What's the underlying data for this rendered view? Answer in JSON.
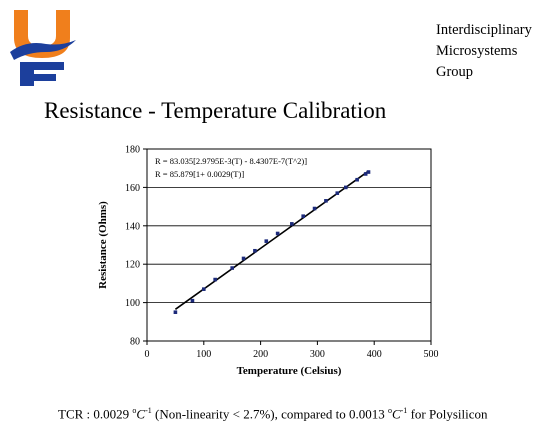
{
  "header": {
    "org_lines": [
      "Interdisciplinary",
      "Microsystems",
      "Group"
    ],
    "slide_title": "Resistance - Temperature Calibration"
  },
  "logo": {
    "icon": "uf-gator-logo-icon",
    "colors": [
      "#f07f1c",
      "#1c3f9c"
    ]
  },
  "chart_data": {
    "type": "scatter",
    "title": "",
    "xlabel": "Temperature (Celsius)",
    "ylabel": "Resistance (Ohms)",
    "xlim": [
      0,
      500
    ],
    "ylim": [
      80,
      180
    ],
    "x_ticks": [
      0,
      100,
      200,
      300,
      400,
      500
    ],
    "y_ticks": [
      80,
      100,
      120,
      140,
      160,
      180
    ],
    "grid": "horizontal",
    "series": [
      {
        "marker_color": "#1c2a7a",
        "points": [
          [
            50,
            95
          ],
          [
            80,
            101
          ],
          [
            100,
            107
          ],
          [
            120,
            112
          ],
          [
            150,
            118
          ],
          [
            170,
            123
          ],
          [
            190,
            127
          ],
          [
            210,
            132
          ],
          [
            230,
            136
          ],
          [
            255,
            141
          ],
          [
            275,
            145
          ],
          [
            295,
            149
          ],
          [
            315,
            153
          ],
          [
            335,
            157
          ],
          [
            350,
            160
          ],
          [
            370,
            164
          ],
          [
            385,
            167
          ],
          [
            390,
            168
          ]
        ]
      }
    ],
    "fits": [
      {
        "x_start": 50,
        "x_end": 390,
        "y_start": 96.5,
        "y_end": 168.5
      }
    ],
    "annotations": [
      "R = 83.035[2.9795E-3(T) - 8.4307E-7(T^2)]",
      "R = 85.879[1+ 0.0029(T)]"
    ]
  },
  "footer": {
    "lead": "TCR : 0.0029 ",
    "unit_base": "C",
    "unit_exp": "-1",
    "mid": " (Non-linearity < 2.7%), compared to 0.0013 ",
    "deg": "o",
    "tail": " for Polysilicon"
  }
}
